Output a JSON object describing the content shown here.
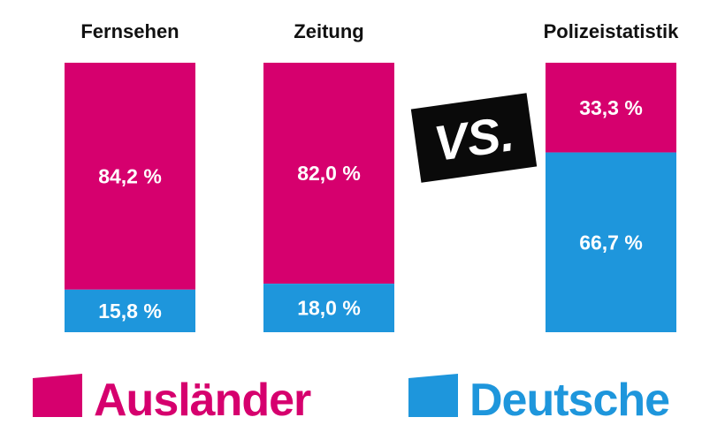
{
  "chart_data": {
    "type": "bar",
    "stacked": true,
    "percent": true,
    "categories": [
      "Fernsehen",
      "Zeitung",
      "Polizeistatistik"
    ],
    "series": [
      {
        "name": "Ausländer",
        "color": "#d6006e",
        "values": [
          84.2,
          82.0,
          33.3
        ],
        "labels": [
          "84,2 %",
          "82,0 %",
          "33,3 %"
        ]
      },
      {
        "name": "Deutsche",
        "color": "#1e96dc",
        "values": [
          15.8,
          18.0,
          66.7
        ],
        "labels": [
          "15,8 %",
          "18,0 %",
          "66,7 %"
        ]
      }
    ],
    "ylim": [
      0,
      100
    ],
    "annotation": "VS.",
    "legend_position": "bottom"
  }
}
